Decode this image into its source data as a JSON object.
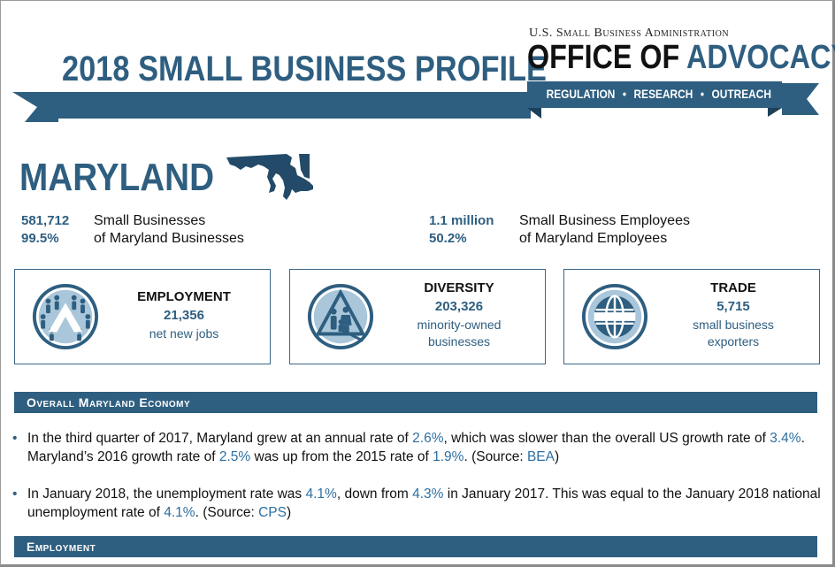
{
  "header": {
    "title": "2018 SMALL BUSINESS PROFILE",
    "agency": "U.S. Small Business Administration",
    "office_black": "OFFICE OF ",
    "office_blue": "ADVOCACY",
    "tagline": [
      "REGULATION",
      "RESEARCH",
      "OUTREACH"
    ],
    "tagline_separator": "•"
  },
  "state": {
    "name": "MARYLAND",
    "map_icon": "maryland-map-icon"
  },
  "stats": {
    "small_businesses_count": "581,712",
    "small_businesses_label": "Small Businesses",
    "small_businesses_share": "99.5%",
    "small_businesses_share_label": "of Maryland Businesses",
    "employees_count": "1.1 million",
    "employees_label": "Small Business Employees",
    "employees_share": "50.2%",
    "employees_share_label": "of Maryland Employees"
  },
  "cards": [
    {
      "title": "EMPLOYMENT",
      "value": "21,356",
      "desc_line1": "net new jobs",
      "desc_line2": "",
      "icon": "people-icon"
    },
    {
      "title": "DIVERSITY",
      "value": "203,326",
      "desc_line1": "minority-owned",
      "desc_line2": "businesses",
      "icon": "family-icon"
    },
    {
      "title": "TRADE",
      "value": "5,715",
      "desc_line1": "small business",
      "desc_line2": "exporters",
      "icon": "globe-icon"
    }
  ],
  "sections": {
    "economy_title": "Overall Maryland Economy",
    "employment_title": "Employment"
  },
  "bullets": {
    "b1": {
      "t1": "In the third quarter of 2017, Maryland grew at an annual rate of ",
      "v1": "2.6%",
      "t2": ", which was slower than the overall US growth rate of ",
      "v2": "3.4%",
      "t3": ". Maryland’s 2016 growth rate of ",
      "v3": "2.5%",
      "t4": " was up from the 2015 rate of ",
      "v4": "1.9%",
      "t5": ". (Source: ",
      "src": "BEA",
      "t6": ")"
    },
    "b2": {
      "t1": "In January 2018, the unemployment rate was ",
      "v1": "4.1%",
      "t2": ", down from ",
      "v2": "4.3%",
      "t3": " in January 2017. This was equal to the January 2018 national unemployment rate of ",
      "v3": "4.1%",
      "t4": ". (Source: ",
      "src": "CPS",
      "t5": ")"
    },
    "symbol": "•"
  },
  "colors": {
    "brand_blue": "#2e5e80",
    "link_blue": "#2e6fa0",
    "icon_fill": "#a9c6da"
  }
}
